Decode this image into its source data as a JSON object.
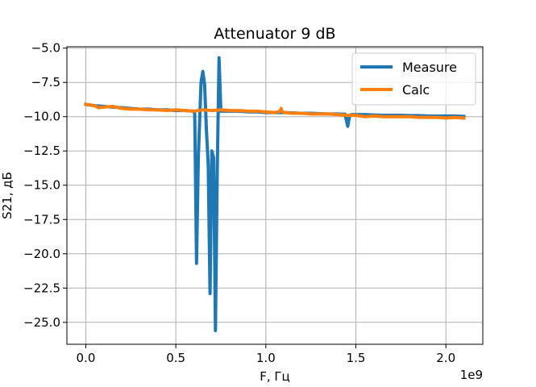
{
  "chart_data": {
    "type": "line",
    "title": "Attenuator 9 dB",
    "xlabel": "F, Гц",
    "ylabel": "S21, дБ",
    "x_offset_label": "1e9",
    "xlim": [
      -0.105,
      2.205
    ],
    "ylim": [
      -26.6,
      -4.9
    ],
    "xticks": [
      0.0,
      0.5,
      1.0,
      1.5,
      2.0
    ],
    "xtick_labels": [
      "0.0",
      "0.5",
      "1.0",
      "1.5",
      "2.0"
    ],
    "yticks": [
      -5.0,
      -7.5,
      -10.0,
      -12.5,
      -15.0,
      -17.5,
      -20.0,
      -22.5,
      -25.0
    ],
    "ytick_labels": [
      "−5.0",
      "−7.5",
      "−10.0",
      "−12.5",
      "−15.0",
      "−17.5",
      "−20.0",
      "−22.5",
      "−25.0"
    ],
    "grid": true,
    "legend_position": "top-right",
    "series": [
      {
        "name": "Measure",
        "color": "#1f77b4",
        "x": [
          0.0,
          0.05,
          0.1,
          0.15,
          0.2,
          0.25,
          0.3,
          0.35,
          0.4,
          0.45,
          0.5,
          0.55,
          0.6,
          0.605,
          0.615,
          0.625,
          0.64,
          0.65,
          0.66,
          0.67,
          0.68,
          0.69,
          0.7,
          0.71,
          0.72,
          0.73,
          0.74,
          0.75,
          0.765,
          0.78,
          0.8,
          0.85,
          0.9,
          0.95,
          1.0,
          1.05,
          1.1,
          1.15,
          1.2,
          1.25,
          1.3,
          1.35,
          1.4,
          1.44,
          1.455,
          1.465,
          1.475,
          1.5,
          1.55,
          1.6,
          1.65,
          1.7,
          1.75,
          1.8,
          1.85,
          1.9,
          1.95,
          2.0,
          2.05,
          2.1
        ],
        "y": [
          -9.1,
          -9.2,
          -9.25,
          -9.3,
          -9.35,
          -9.4,
          -9.45,
          -9.45,
          -9.5,
          -9.5,
          -9.55,
          -9.55,
          -9.6,
          -9.8,
          -20.7,
          -13.0,
          -7.5,
          -6.7,
          -7.7,
          -11.0,
          -13.5,
          -22.9,
          -12.5,
          -13.0,
          -25.6,
          -14.0,
          -5.7,
          -9.6,
          -9.6,
          -9.6,
          -9.6,
          -9.6,
          -9.65,
          -9.65,
          -9.7,
          -9.7,
          -9.7,
          -9.72,
          -9.75,
          -9.75,
          -9.78,
          -9.8,
          -9.8,
          -9.82,
          -10.7,
          -9.95,
          -9.85,
          -9.85,
          -9.85,
          -9.88,
          -9.9,
          -9.9,
          -9.9,
          -9.92,
          -9.92,
          -9.95,
          -9.95,
          -9.95,
          -9.95,
          -9.98
        ]
      },
      {
        "name": "Calc",
        "color": "#ff7f0e",
        "x": [
          0.0,
          0.05,
          0.07,
          0.1,
          0.15,
          0.2,
          0.25,
          0.3,
          0.35,
          0.4,
          0.45,
          0.5,
          0.55,
          0.6,
          0.65,
          0.7,
          0.75,
          0.8,
          0.85,
          0.9,
          0.95,
          1.0,
          1.05,
          1.08,
          1.085,
          1.09,
          1.1,
          1.15,
          1.2,
          1.25,
          1.3,
          1.35,
          1.4,
          1.45,
          1.5,
          1.55,
          1.6,
          1.65,
          1.7,
          1.75,
          1.8,
          1.85,
          1.9,
          1.95,
          2.0,
          2.05,
          2.1
        ],
        "y": [
          -9.1,
          -9.2,
          -9.35,
          -9.3,
          -9.25,
          -9.4,
          -9.45,
          -9.45,
          -9.5,
          -9.5,
          -9.55,
          -9.5,
          -9.55,
          -9.6,
          -9.5,
          -9.55,
          -9.5,
          -9.55,
          -9.55,
          -9.6,
          -9.6,
          -9.65,
          -9.7,
          -9.6,
          -9.4,
          -9.6,
          -9.7,
          -9.75,
          -9.75,
          -9.8,
          -9.8,
          -9.8,
          -9.85,
          -9.9,
          -9.9,
          -10.0,
          -9.95,
          -10.0,
          -10.0,
          -10.0,
          -10.0,
          -10.05,
          -10.05,
          -10.05,
          -10.1,
          -10.05,
          -10.1
        ]
      }
    ]
  }
}
